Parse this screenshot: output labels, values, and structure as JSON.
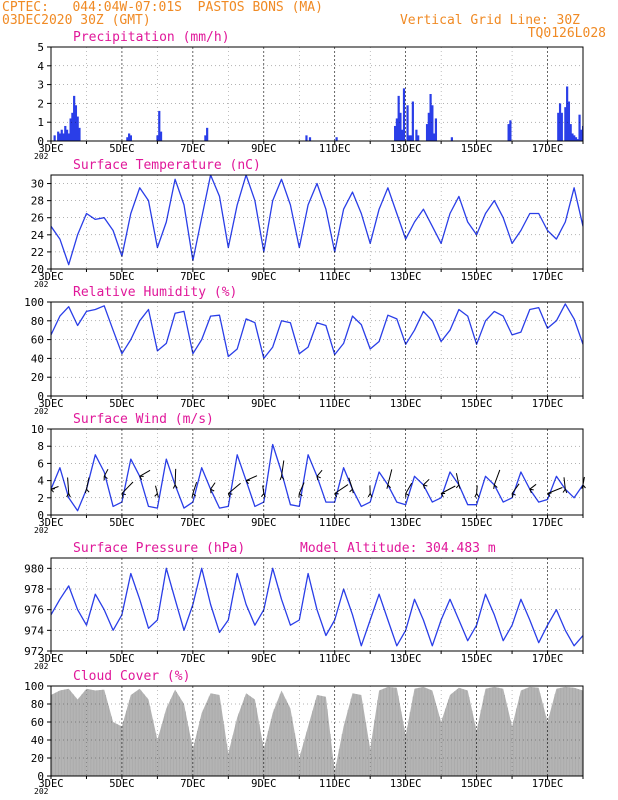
{
  "header": {
    "line1_left": "CPTEC:   044:04W-07:01S  PASTOS BONS (MA)",
    "line2_left": "03DEC2020 30Z (GMT)",
    "line1_right": "Vertical Grid Line: 30Z",
    "line2_right": "TQ0126L028",
    "color": "#f08a24"
  },
  "colors": {
    "title": "#e0189a",
    "series": "#2a3ee8",
    "bar": "#2a3ee8",
    "cloud": "#b4b4b4",
    "axis": "#000000"
  },
  "x_labels": [
    "3DEC",
    "5DEC",
    "7DEC",
    "9DEC",
    "11DEC",
    "13DEC",
    "15DEC",
    "17DEC"
  ],
  "x_label_values": [
    0,
    2,
    4,
    6,
    8,
    10,
    12,
    14
  ],
  "x_range_days": [
    0,
    15
  ],
  "year_fragment": "202",
  "chart_data": [
    {
      "type": "bar",
      "title": "Precipitation (mm/h)",
      "ylim": [
        0,
        5
      ],
      "yticks": [
        0,
        1,
        2,
        3,
        4,
        5
      ],
      "x": [
        0.1,
        0.2,
        0.25,
        0.3,
        0.35,
        0.4,
        0.45,
        0.5,
        0.55,
        0.6,
        0.65,
        0.7,
        0.75,
        0.8,
        2.15,
        2.2,
        2.25,
        3.0,
        3.05,
        3.1,
        4.35,
        4.4,
        7.2,
        7.3,
        8.05,
        9.7,
        9.75,
        9.8,
        9.85,
        9.9,
        9.95,
        10.05,
        10.1,
        10.15,
        10.2,
        10.3,
        10.35,
        10.6,
        10.65,
        10.7,
        10.75,
        10.8,
        10.85,
        11.3,
        12.9,
        12.95,
        14.3,
        14.35,
        14.4,
        14.5,
        14.55,
        14.6,
        14.65,
        14.7,
        14.75,
        14.8,
        14.85,
        14.9,
        14.95,
        15.0
      ],
      "values": [
        0.3,
        0.5,
        0.4,
        0.6,
        0.4,
        0.8,
        0.6,
        0.4,
        1.2,
        1.5,
        2.4,
        1.9,
        1.3,
        0.7,
        0.2,
        0.4,
        0.3,
        0.3,
        1.6,
        0.5,
        0.3,
        0.7,
        0.3,
        0.2,
        0.2,
        0.8,
        1.2,
        2.4,
        1.5,
        0.6,
        2.8,
        1.9,
        0.3,
        0.3,
        2.1,
        0.6,
        0.3,
        0.9,
        1.5,
        2.5,
        1.9,
        0.4,
        1.2,
        0.2,
        0.9,
        1.1,
        1.5,
        2.0,
        1.5,
        1.8,
        2.9,
        2.1,
        0.9,
        0.4,
        0.3,
        0.2,
        0.1,
        1.4,
        0.6,
        0.8
      ]
    },
    {
      "type": "line",
      "title": "Surface Temperature (nC)",
      "ylim": [
        20,
        31
      ],
      "yticks": [
        20,
        22,
        24,
        26,
        28,
        30
      ],
      "x": [
        0,
        0.25,
        0.5,
        0.75,
        1,
        1.25,
        1.5,
        1.75,
        2,
        2.25,
        2.5,
        2.75,
        3,
        3.25,
        3.5,
        3.75,
        4,
        4.25,
        4.5,
        4.75,
        5,
        5.25,
        5.5,
        5.75,
        6,
        6.25,
        6.5,
        6.75,
        7,
        7.25,
        7.5,
        7.75,
        8,
        8.25,
        8.5,
        8.75,
        9,
        9.25,
        9.5,
        9.75,
        10,
        10.25,
        10.5,
        10.75,
        11,
        11.25,
        11.5,
        11.75,
        12,
        12.25,
        12.5,
        12.75,
        13,
        13.25,
        13.5,
        13.75,
        14,
        14.25,
        14.5,
        14.75,
        15
      ],
      "values": [
        25,
        23.5,
        20.5,
        24,
        26.5,
        25.8,
        26,
        24.5,
        21.5,
        26.5,
        29.5,
        28,
        22.5,
        25.5,
        30.5,
        27.5,
        21,
        26,
        31,
        28.5,
        22.5,
        27.5,
        31,
        28,
        22,
        28,
        30.5,
        27.5,
        22.5,
        27.5,
        30,
        27,
        22,
        27,
        29,
        26.5,
        23,
        27,
        29.5,
        26.5,
        23.5,
        25.5,
        27,
        25,
        23,
        26.5,
        28.5,
        25.5,
        24,
        26.5,
        28,
        26,
        23,
        24.5,
        26.5,
        26.5,
        24.5,
        23.5,
        25.5,
        29.5,
        25
      ]
    },
    {
      "type": "line",
      "title": "Relative Humidity (%)",
      "ylim": [
        0,
        100
      ],
      "yticks": [
        0,
        20,
        40,
        60,
        80,
        100
      ],
      "x": [
        0,
        0.25,
        0.5,
        0.75,
        1,
        1.25,
        1.5,
        1.75,
        2,
        2.25,
        2.5,
        2.75,
        3,
        3.25,
        3.5,
        3.75,
        4,
        4.25,
        4.5,
        4.75,
        5,
        5.25,
        5.5,
        5.75,
        6,
        6.25,
        6.5,
        6.75,
        7,
        7.25,
        7.5,
        7.75,
        8,
        8.25,
        8.5,
        8.75,
        9,
        9.25,
        9.5,
        9.75,
        10,
        10.25,
        10.5,
        10.75,
        11,
        11.25,
        11.5,
        11.75,
        12,
        12.25,
        12.5,
        12.75,
        13,
        13.25,
        13.5,
        13.75,
        14,
        14.25,
        14.5,
        14.75,
        15
      ],
      "values": [
        65,
        85,
        95,
        75,
        90,
        92,
        96,
        70,
        45,
        60,
        80,
        92,
        48,
        56,
        88,
        90,
        45,
        60,
        85,
        86,
        42,
        50,
        82,
        78,
        40,
        52,
        80,
        78,
        45,
        52,
        78,
        75,
        44,
        56,
        85,
        76,
        50,
        58,
        86,
        82,
        55,
        70,
        90,
        80,
        58,
        70,
        92,
        85,
        55,
        80,
        90,
        85,
        65,
        68,
        92,
        94,
        72,
        80,
        98,
        82,
        55
      ]
    },
    {
      "type": "line",
      "title": "Surface Wind (m/s)",
      "ylim": [
        0,
        10
      ],
      "yticks": [
        0,
        2,
        4,
        6,
        8,
        10
      ],
      "x": [
        0,
        0.25,
        0.5,
        0.75,
        1,
        1.25,
        1.5,
        1.75,
        2,
        2.25,
        2.5,
        2.75,
        3,
        3.25,
        3.5,
        3.75,
        4,
        4.25,
        4.5,
        4.75,
        5,
        5.25,
        5.5,
        5.75,
        6,
        6.25,
        6.5,
        6.75,
        7,
        7.25,
        7.5,
        7.75,
        8,
        8.25,
        8.5,
        8.75,
        9,
        9.25,
        9.5,
        9.75,
        10,
        10.25,
        10.5,
        10.75,
        11,
        11.25,
        11.5,
        11.75,
        12,
        12.25,
        12.5,
        12.75,
        13,
        13.25,
        13.5,
        13.75,
        14,
        14.25,
        14.5,
        14.75,
        15
      ],
      "values": [
        3,
        5.5,
        2,
        0.5,
        3,
        7,
        5,
        1,
        1.5,
        6.5,
        4.5,
        1,
        0.8,
        6.5,
        3.5,
        0.8,
        1.5,
        5.5,
        3,
        0.8,
        1,
        7,
        4,
        1,
        1.5,
        8.2,
        5,
        1.2,
        1,
        7,
        4.5,
        1.5,
        1.5,
        5.5,
        3,
        1,
        1.5,
        5,
        3.5,
        1.5,
        1.2,
        4.5,
        3.5,
        1.5,
        2,
        5,
        3.5,
        1.2,
        1.2,
        4.5,
        3.5,
        1.5,
        2,
        5,
        3,
        1.5,
        1.8,
        4.5,
        3,
        2,
        3.5
      ]
    },
    {
      "type": "line",
      "title": "Surface Pressure (hPa)",
      "annotation": "Model Altitude: 304.483  m",
      "ylim": [
        972,
        981
      ],
      "yticks": [
        972,
        974,
        976,
        978,
        980
      ],
      "x": [
        0,
        0.25,
        0.5,
        0.75,
        1,
        1.25,
        1.5,
        1.75,
        2,
        2.25,
        2.5,
        2.75,
        3,
        3.25,
        3.5,
        3.75,
        4,
        4.25,
        4.5,
        4.75,
        5,
        5.25,
        5.5,
        5.75,
        6,
        6.25,
        6.5,
        6.75,
        7,
        7.25,
        7.5,
        7.75,
        8,
        8.25,
        8.5,
        8.75,
        9,
        9.25,
        9.5,
        9.75,
        10,
        10.25,
        10.5,
        10.75,
        11,
        11.25,
        11.5,
        11.75,
        12,
        12.25,
        12.5,
        12.75,
        13,
        13.25,
        13.5,
        13.75,
        14,
        14.25,
        14.5,
        14.75,
        15
      ],
      "values": [
        975.5,
        977,
        978.3,
        976,
        974.5,
        977.5,
        976,
        974,
        975.5,
        979.5,
        977,
        974.2,
        975,
        980,
        977,
        974,
        976.5,
        980,
        976.5,
        973.8,
        975,
        979.5,
        976.5,
        974.5,
        976,
        980,
        977,
        974.5,
        975,
        979.5,
        976,
        973.5,
        975,
        978,
        975.5,
        972.5,
        975,
        977.5,
        975,
        972.5,
        974,
        977,
        975,
        972.5,
        975,
        977,
        975,
        973,
        974.5,
        977.5,
        975.5,
        973,
        974.5,
        977,
        975,
        972.8,
        974.5,
        976,
        974,
        972.5,
        973.5
      ]
    },
    {
      "type": "area",
      "title": "Cloud Cover (%)",
      "ylim": [
        0,
        100
      ],
      "yticks": [
        0,
        20,
        40,
        60,
        80,
        100
      ],
      "x": [
        0,
        0.25,
        0.5,
        0.75,
        1,
        1.25,
        1.5,
        1.75,
        2,
        2.25,
        2.5,
        2.75,
        3,
        3.25,
        3.5,
        3.75,
        4,
        4.25,
        4.5,
        4.75,
        5,
        5.25,
        5.5,
        5.75,
        6,
        6.25,
        6.5,
        6.75,
        7,
        7.25,
        7.5,
        7.75,
        8,
        8.25,
        8.5,
        8.75,
        9,
        9.25,
        9.5,
        9.75,
        10,
        10.25,
        10.5,
        10.75,
        11,
        11.25,
        11.5,
        11.75,
        12,
        12.25,
        12.5,
        12.75,
        13,
        13.25,
        13.5,
        13.75,
        14,
        14.25,
        14.5,
        14.75,
        15
      ],
      "values": [
        90,
        95,
        97,
        85,
        97,
        95,
        96,
        60,
        55,
        90,
        97,
        85,
        40,
        75,
        96,
        80,
        30,
        70,
        92,
        90,
        25,
        65,
        92,
        85,
        30,
        70,
        95,
        75,
        20,
        55,
        90,
        88,
        5,
        55,
        92,
        90,
        30,
        95,
        99,
        98,
        45,
        97,
        99,
        95,
        60,
        90,
        98,
        95,
        50,
        97,
        99,
        97,
        55,
        95,
        99,
        98,
        60,
        97,
        99,
        98,
        95
      ]
    }
  ]
}
